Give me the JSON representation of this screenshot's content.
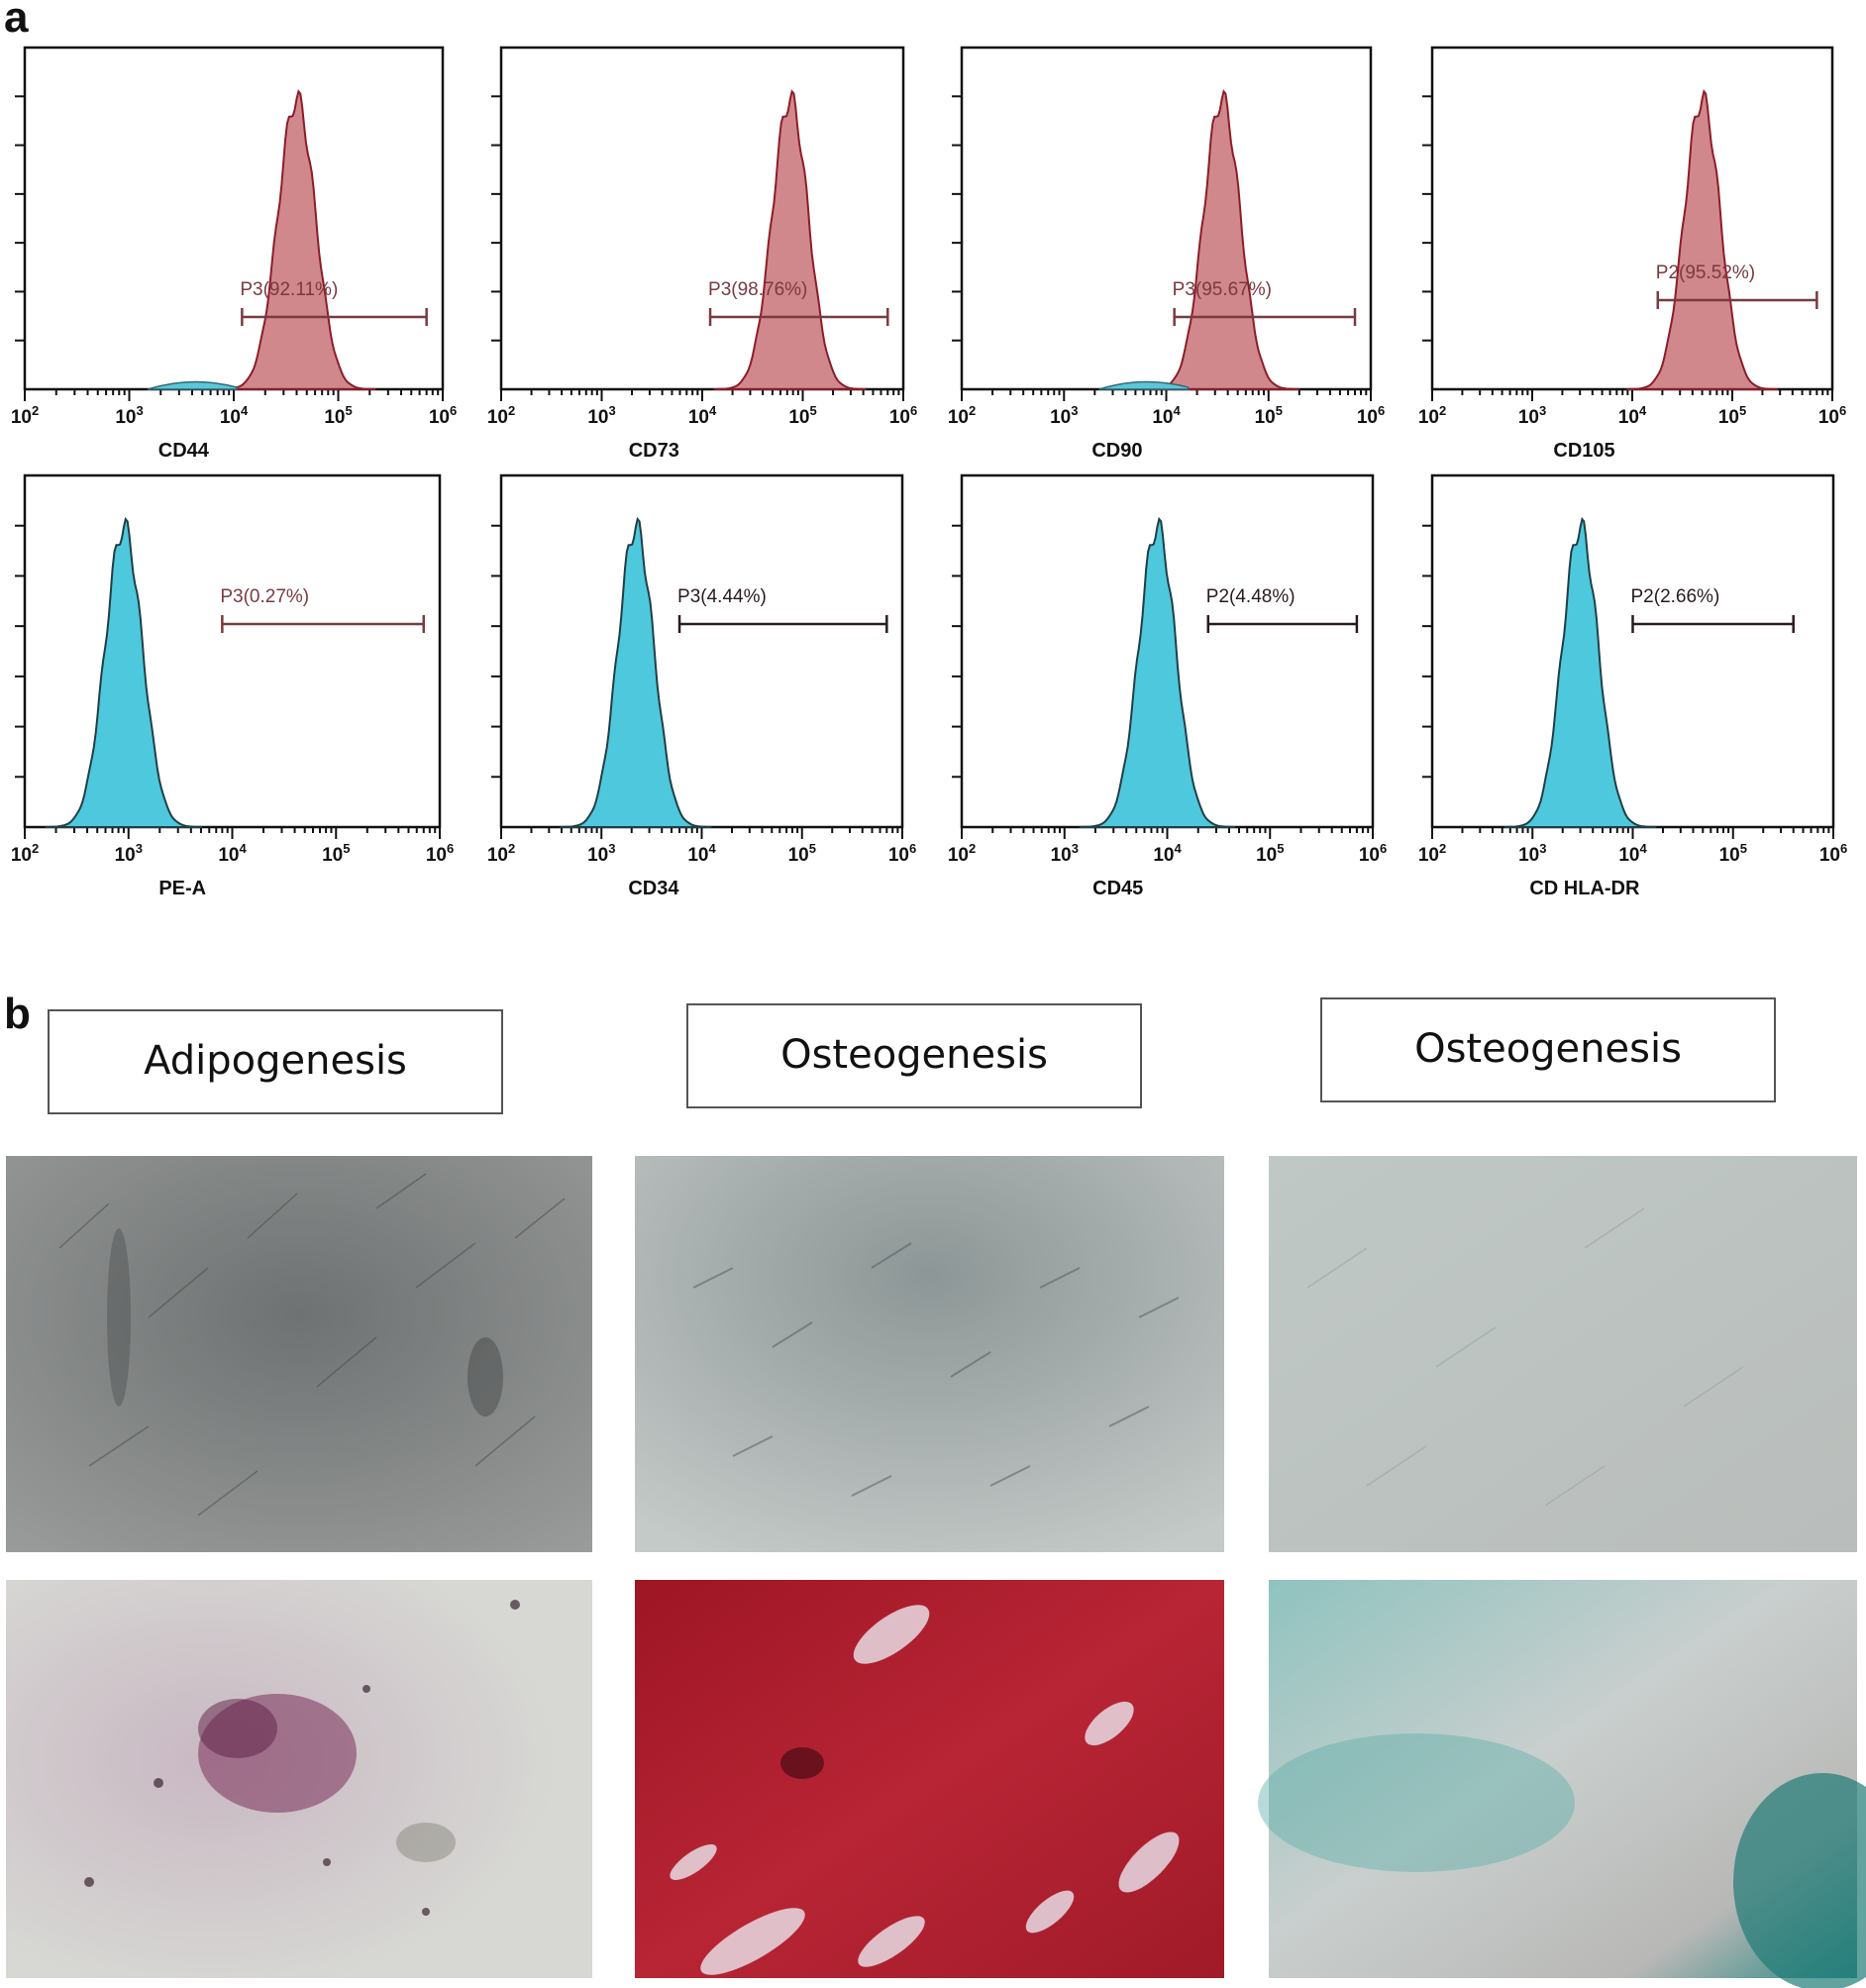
{
  "panels": {
    "a": {
      "letter": "a"
    },
    "b": {
      "letter": "b",
      "labels": [
        "Adipogenesis",
        "Osteogenesis",
        "Osteogenesis"
      ]
    }
  },
  "chart_data": [
    {
      "type": "histogram",
      "xlabel": "CD44",
      "x_scale": "log",
      "xlim": [
        100,
        1000000
      ],
      "x_ticks": [
        "10^2",
        "10^3",
        "10^4",
        "10^5",
        "10^6"
      ],
      "gate": {
        "label": "P3(92.11%)",
        "range": [
          12000,
          700000
        ]
      },
      "peak": 40000,
      "color": "#b8484f",
      "minor": {
        "peak": 4000,
        "color": "#5cc6d8"
      }
    },
    {
      "type": "histogram",
      "xlabel": "CD73",
      "x_scale": "log",
      "xlim": [
        100,
        1000000
      ],
      "x_ticks": [
        "10^2",
        "10^3",
        "10^4",
        "10^5",
        "10^6"
      ],
      "gate": {
        "label": "P3(98.76%)",
        "range": [
          12000,
          700000
        ]
      },
      "peak": 75000,
      "color": "#b8484f"
    },
    {
      "type": "histogram",
      "xlabel": "CD90",
      "x_scale": "log",
      "xlim": [
        100,
        1000000
      ],
      "x_ticks": [
        "10^2",
        "10^3",
        "10^4",
        "10^5",
        "10^6"
      ],
      "gate": {
        "label": "P3(95.67%)",
        "range": [
          12000,
          700000
        ]
      },
      "peak": 35000,
      "color": "#b8484f",
      "minor": {
        "peak": 6000,
        "color": "#5cc6d8"
      }
    },
    {
      "type": "histogram",
      "xlabel": "CD105",
      "x_scale": "log",
      "xlim": [
        100,
        1000000
      ],
      "x_ticks": [
        "10^2",
        "10^3",
        "10^4",
        "10^5",
        "10^6"
      ],
      "gate": {
        "label": "P2(95.52%)",
        "range": [
          18000,
          700000
        ]
      },
      "peak": 50000,
      "color": "#b8484f"
    },
    {
      "type": "histogram",
      "xlabel": "PE-A",
      "x_scale": "log",
      "xlim": [
        100,
        1000000
      ],
      "x_ticks": [
        "10^2",
        "10^3",
        "10^4",
        "10^5",
        "10^6"
      ],
      "gate": {
        "label": "P3(0.27%)",
        "range": [
          8000,
          700000
        ]
      },
      "peak": 900,
      "color": "#4ec8dc"
    },
    {
      "type": "histogram",
      "xlabel": "CD34",
      "x_scale": "log",
      "xlim": [
        100,
        1000000
      ],
      "x_ticks": [
        "10^2",
        "10^3",
        "10^4",
        "10^5",
        "10^6"
      ],
      "gate": {
        "label": "P3(4.44%)",
        "range": [
          6000,
          700000
        ]
      },
      "peak": 2200,
      "color": "#4ec8dc"
    },
    {
      "type": "histogram",
      "xlabel": "CD45",
      "x_scale": "log",
      "xlim": [
        100,
        1000000
      ],
      "x_ticks": [
        "10^2",
        "10^3",
        "10^4",
        "10^5",
        "10^6"
      ],
      "gate": {
        "label": "P2(4.48%)",
        "range": [
          25000,
          700000
        ]
      },
      "peak": 8000,
      "color": "#4ec8dc"
    },
    {
      "type": "histogram",
      "xlabel": "CD HLA-DR",
      "x_scale": "log",
      "xlim": [
        100,
        1000000
      ],
      "x_ticks": [
        "10^2",
        "10^3",
        "10^4",
        "10^5",
        "10^6"
      ],
      "gate": {
        "label": "P2(2.66%)",
        "range": [
          10000,
          400000
        ]
      },
      "peak": 3000,
      "color": "#4ec8dc"
    }
  ]
}
